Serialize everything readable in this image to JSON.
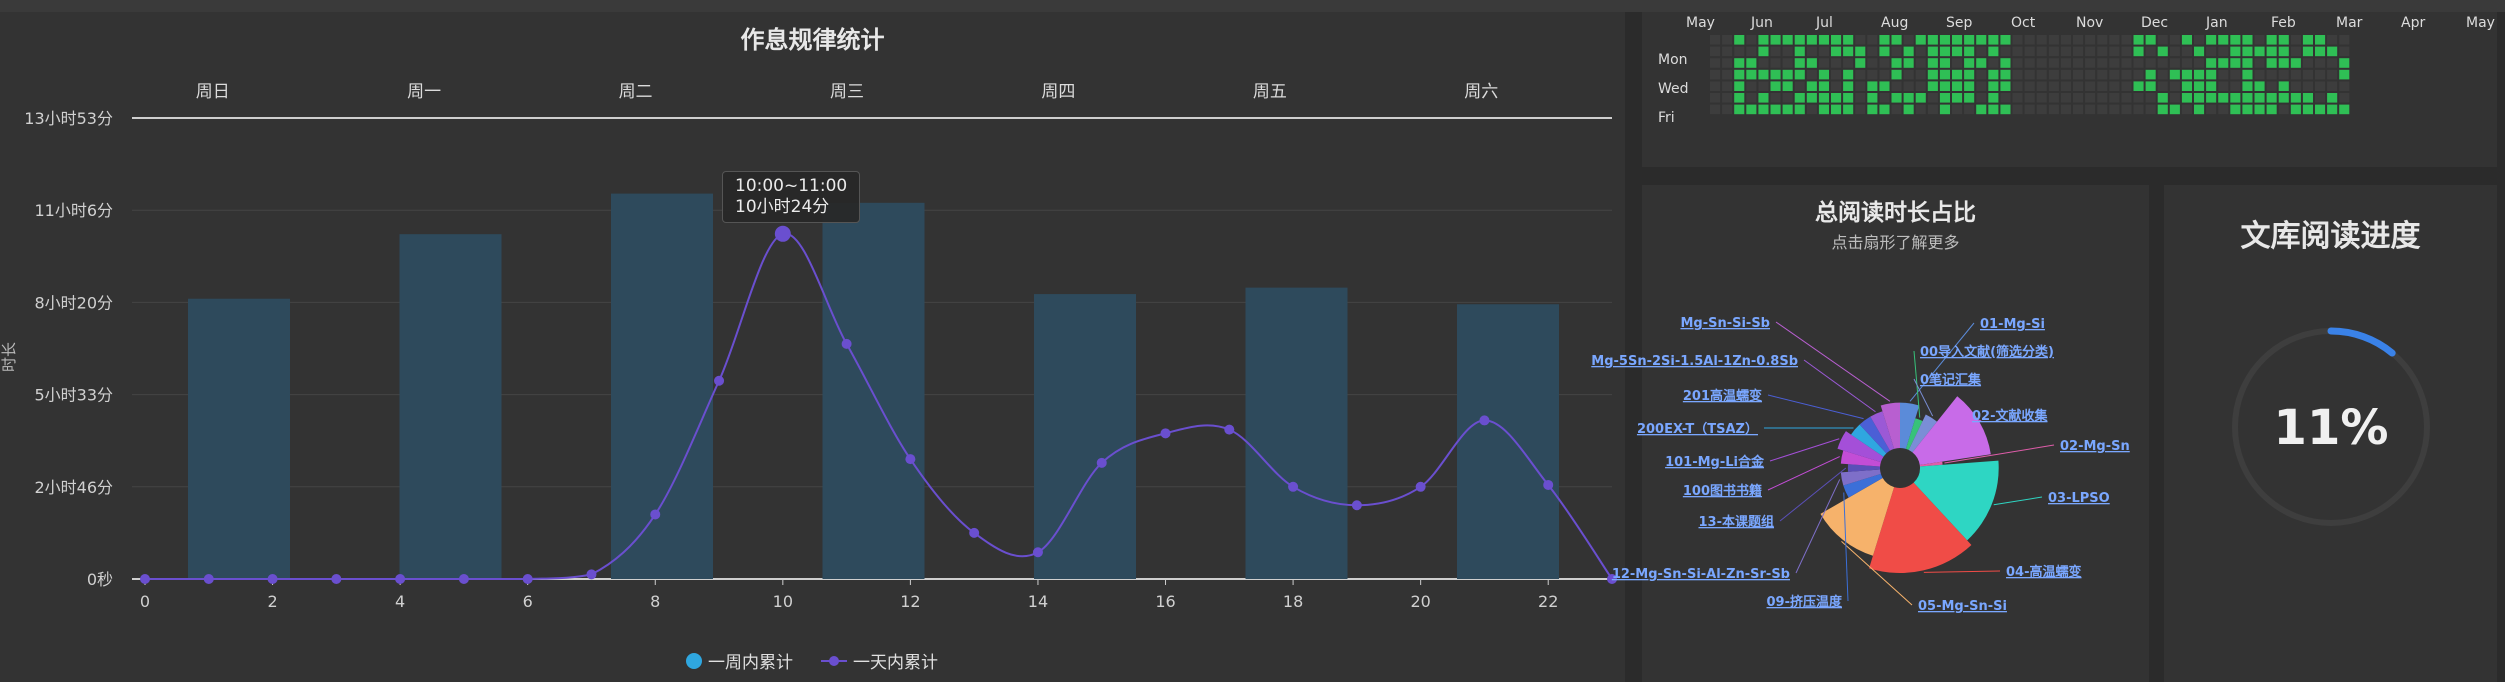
{
  "colors": {
    "bar": "#2e4a5c",
    "line": "#6a4fcf",
    "heat_dark": "#3d3d3d",
    "heat_light": "#2fbf55",
    "progress": "#3a82e8"
  },
  "main": {
    "title": "作息规律统计",
    "ylabel": "时长",
    "tooltip_range": "10:00~11:00",
    "tooltip_value": "10小时24分",
    "legend": [
      {
        "label": "一周内累计",
        "icon": "circle-marker"
      },
      {
        "label": "一天内累计",
        "icon": "line-marker"
      }
    ]
  },
  "chart_data": [
    {
      "type": "bar",
      "title": "作息规律统计",
      "ylabel": "时长",
      "ylim": [
        0,
        50000
      ],
      "ytick_labels": [
        "0秒",
        "2小时46分",
        "5小时33分",
        "8小时20分",
        "11小时6分",
        "13小时53分"
      ],
      "categories": [
        "周日",
        "周一",
        "周二",
        "周三",
        "周四",
        "周五",
        "周六"
      ],
      "series": [
        {
          "name": "一周内累计",
          "values": [
            30400,
            37400,
            41800,
            40800,
            30900,
            31600,
            29800
          ]
        }
      ],
      "grid": true
    },
    {
      "type": "line",
      "xlim": [
        0,
        23
      ],
      "x": [
        0,
        1,
        2,
        3,
        4,
        5,
        6,
        7,
        8,
        9,
        10,
        11,
        12,
        13,
        14,
        15,
        16,
        17,
        18,
        19,
        20,
        21,
        22,
        23
      ],
      "xtick_labels": [
        "0",
        "2",
        "4",
        "6",
        "8",
        "10",
        "12",
        "14",
        "16",
        "18",
        "20",
        "22"
      ],
      "series": [
        {
          "name": "一天内累计",
          "values": [
            0,
            0,
            0,
            0,
            0,
            0,
            0,
            500,
            7000,
            21500,
            37440,
            25500,
            13000,
            5000,
            2900,
            12600,
            15800,
            16200,
            10000,
            8000,
            10000,
            17200,
            10200,
            0
          ]
        }
      ],
      "legend": "bottom-center"
    },
    {
      "type": "heatmap",
      "months": [
        "May",
        "Jun",
        "Jul",
        "Aug",
        "Sep",
        "Oct",
        "Nov",
        "Dec",
        "Jan",
        "Feb",
        "Mar",
        "Apr",
        "May"
      ],
      "weekdays": [
        "Mon",
        "Wed",
        "Fri"
      ]
    },
    {
      "type": "pie",
      "title": "总阅读时长占比",
      "subtitle": "点击扇形了解更多",
      "slices": [
        {
          "label": "01-Mg-Si",
          "value": 4,
          "color": "#5b8bd9"
        },
        {
          "label": "00导入文献(筛选分类)",
          "value": 2,
          "color": "#37c27a"
        },
        {
          "label": "0笔记汇集",
          "value": 3,
          "color": "#7a8ed6"
        },
        {
          "label": "02-文献收集",
          "value": 10,
          "color": "#c86be8"
        },
        {
          "label": "02-Mg-Sn",
          "value": 1,
          "color": "#e05daa"
        },
        {
          "label": "03-LPSO",
          "value": 12,
          "color": "#2ed6c3"
        },
        {
          "label": "04-高温蠕变",
          "value": 14,
          "color": "#f04c47"
        },
        {
          "label": "05-Mg-Sn-Si",
          "value": 10,
          "color": "#f6b26b"
        },
        {
          "label": "09-挤压温度",
          "value": 3,
          "color": "#3b6fd8"
        },
        {
          "label": "12-Mg-Sn-Si-Al-Zn-Sr-Sb",
          "value": 3,
          "color": "#7e6fc9"
        },
        {
          "label": "13-本课题组",
          "value": 2,
          "color": "#5a4fb8"
        },
        {
          "label": "100图书书籍",
          "value": 3,
          "color": "#c34dd6"
        },
        {
          "label": "101-Mg-Li合金",
          "value": 4,
          "color": "#a44fd8"
        },
        {
          "label": "200EX-T（TSAZ）",
          "value": 3,
          "color": "#2fa7e0"
        },
        {
          "label": "201高温蠕变",
          "value": 3,
          "color": "#4b5fd6"
        },
        {
          "label": "Mg-5Sn-2Si-1.5Al-1Zn-0.8Sb",
          "value": 3,
          "color": "#9b59d6"
        },
        {
          "label": "Mg-Sn-Si-Sb",
          "value": 4,
          "color": "#b85fd0"
        }
      ]
    }
  ],
  "progress": {
    "title": "文库阅读进度",
    "value_text": "11%",
    "fraction": 0.11
  }
}
